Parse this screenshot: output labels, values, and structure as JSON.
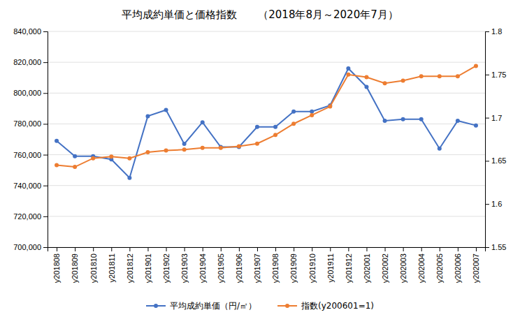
{
  "chart_data": {
    "type": "line",
    "title": "平均成約単価と価格指数　　（2018年8月～2020年7月）",
    "categories": [
      "y201808",
      "y201809",
      "y201810",
      "y201811",
      "y201812",
      "y201901",
      "y201902",
      "y201903",
      "y201904",
      "y201905",
      "y201906",
      "y201907",
      "y201908",
      "y201909",
      "y201910",
      "y201911",
      "y201912",
      "y202001",
      "y202002",
      "y202003",
      "y202004",
      "y202005",
      "y202006",
      "y202007"
    ],
    "series": [
      {
        "name": "平均成約単価（円/㎡）",
        "color": "#4472C4",
        "marker": "circle",
        "values": [
          769000,
          759000,
          759000,
          757000,
          745000,
          785000,
          789000,
          767000,
          781000,
          765000,
          765000,
          778000,
          778000,
          788000,
          788000,
          792000,
          816000,
          804000,
          782000,
          783000,
          783000,
          764000,
          782000,
          779000
        ]
      },
      {
        "name": "指数(y200601=1)",
        "color": "#ED7D31",
        "marker": "circle",
        "axis": "y2",
        "values": [
          1.645,
          1.643,
          1.653,
          1.655,
          1.653,
          1.66,
          1.662,
          1.663,
          1.665,
          1.665,
          1.667,
          1.67,
          1.68,
          1.693,
          1.703,
          1.713,
          1.75,
          1.747,
          1.74,
          1.743,
          1.748,
          1.748,
          1.748,
          1.76
        ]
      }
    ],
    "ylim": [
      700000,
      840000
    ],
    "yticks": [
      {
        "value": 700000,
        "label": "700,000"
      },
      {
        "value": 720000,
        "label": "720,000"
      },
      {
        "value": 740000,
        "label": "740,000"
      },
      {
        "value": 760000,
        "label": "760,000"
      },
      {
        "value": 780000,
        "label": "780,000"
      },
      {
        "value": 800000,
        "label": "800,000"
      },
      {
        "value": 820000,
        "label": "820,000"
      },
      {
        "value": 840000,
        "label": "840,000"
      }
    ],
    "y2lim": [
      1.55,
      1.8
    ],
    "y2ticks": [
      1.55,
      1.6,
      1.65,
      1.7,
      1.75,
      1.8
    ],
    "grid": true,
    "legend": "bottom"
  }
}
